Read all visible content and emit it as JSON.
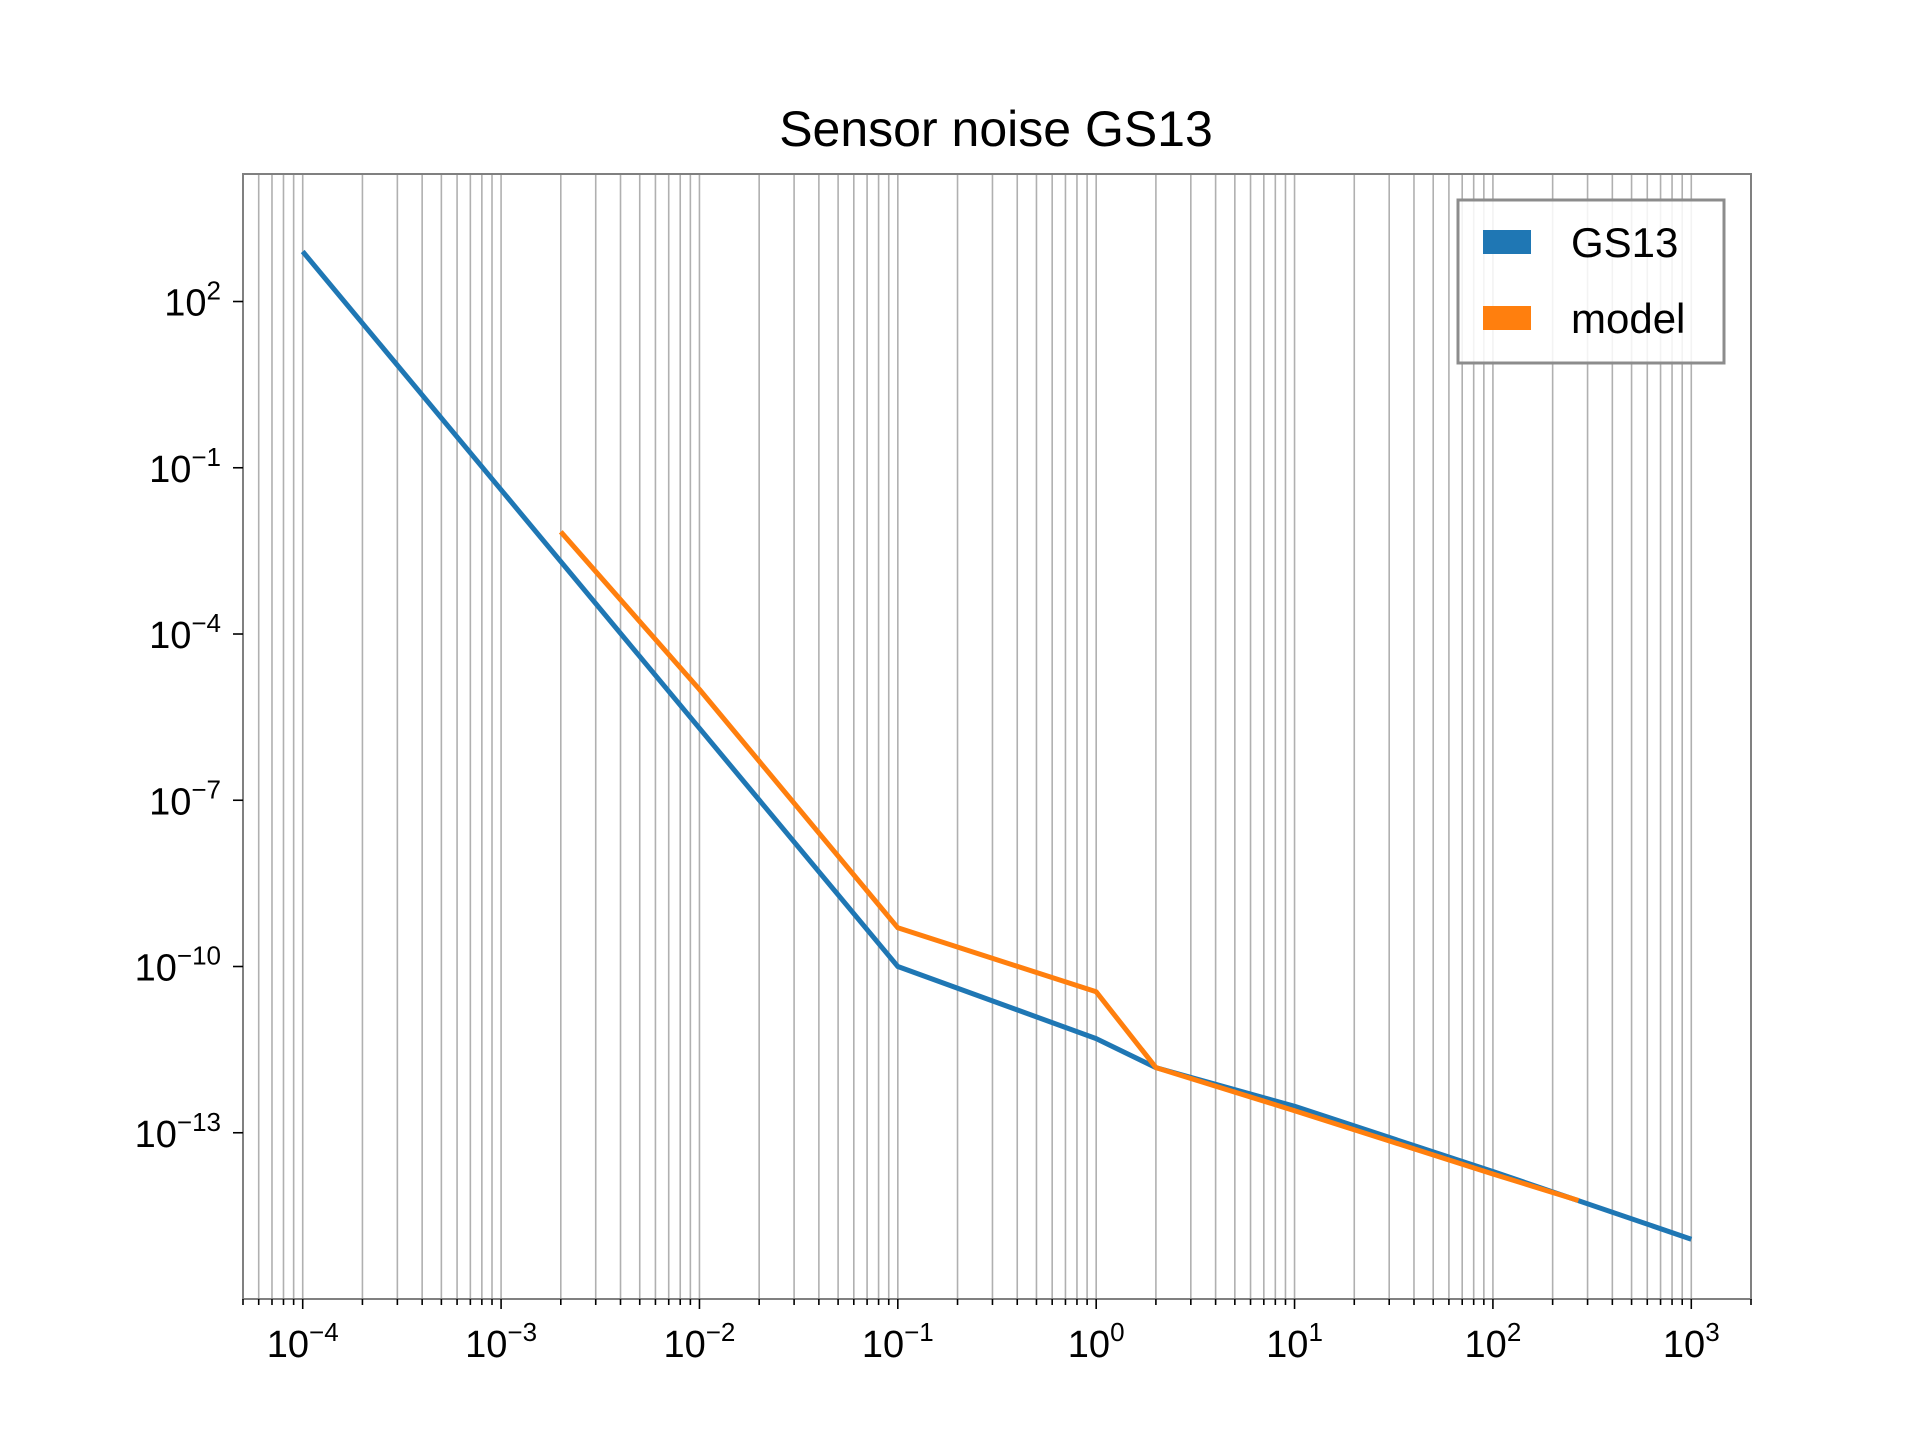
{
  "chart_data": {
    "type": "line",
    "title": "Sensor noise GS13",
    "xlabel": "",
    "ylabel": "",
    "xscale": "log",
    "yscale": "log",
    "xlim": [
      5e-05,
      2000
    ],
    "ylim": [
      1e-16,
      20000.0
    ],
    "grid": "x-axis major and minor vertical lines",
    "legend": {
      "placement": "top-right",
      "entries": [
        "GS13",
        "model"
      ]
    },
    "x_ticks": [
      {
        "base": "10",
        "exp": "−4",
        "value": 0.0001
      },
      {
        "base": "10",
        "exp": "−3",
        "value": 0.001
      },
      {
        "base": "10",
        "exp": "−2",
        "value": 0.01
      },
      {
        "base": "10",
        "exp": "−1",
        "value": 0.1
      },
      {
        "base": "10",
        "exp": "0",
        "value": 1
      },
      {
        "base": "10",
        "exp": "1",
        "value": 10
      },
      {
        "base": "10",
        "exp": "2",
        "value": 100
      },
      {
        "base": "10",
        "exp": "3",
        "value": 1000
      }
    ],
    "y_ticks": [
      {
        "base": "10",
        "exp": "2",
        "value": 100
      },
      {
        "base": "10",
        "exp": "−1",
        "value": 0.1
      },
      {
        "base": "10",
        "exp": "−4",
        "value": 0.0001
      },
      {
        "base": "10",
        "exp": "−7",
        "value": 1e-07
      },
      {
        "base": "10",
        "exp": "−10",
        "value": 1e-10
      },
      {
        "base": "10",
        "exp": "−13",
        "value": 1e-13
      }
    ],
    "series": [
      {
        "name": "GS13",
        "color": "#1f77b4",
        "x": [
          0.0001,
          0.001,
          0.01,
          0.1,
          1,
          2,
          10,
          100,
          1000
        ],
        "y": [
          800,
          0.04,
          2e-06,
          1e-10,
          5e-12,
          1.5e-12,
          3e-13,
          2e-14,
          1.2e-15
        ]
      },
      {
        "name": "model",
        "color": "#ff7f0e",
        "x": [
          0.002,
          0.01,
          0.1,
          1,
          2,
          10,
          100,
          270
        ],
        "y": [
          0.007,
          1e-05,
          5e-10,
          3.5e-11,
          1.5e-12,
          2.5e-13,
          1.8e-14,
          6e-15
        ]
      }
    ]
  }
}
